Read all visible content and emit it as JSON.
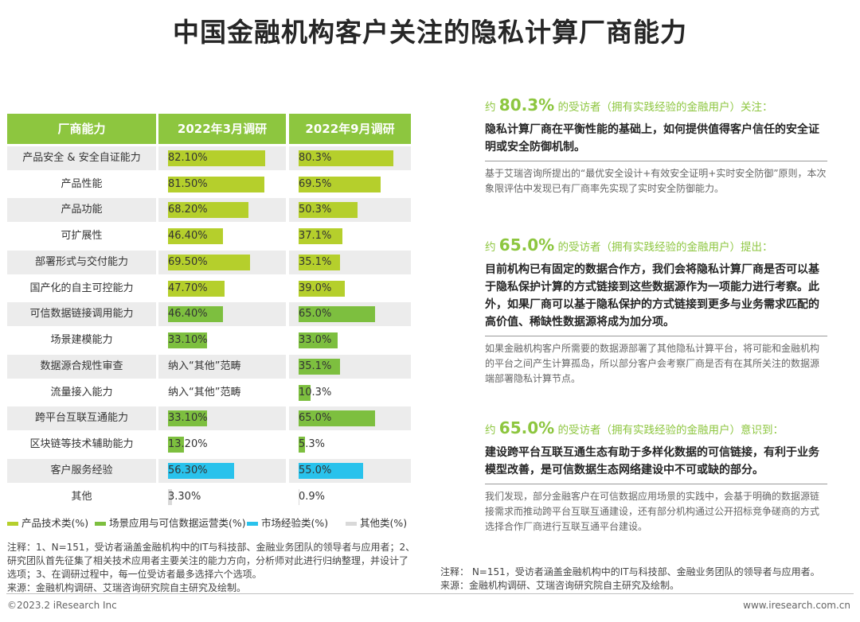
{
  "title": "中国金融机构客户关注的隐私计算厂商能力",
  "colors": {
    "product": "#b5cf2c",
    "scene": "#7dbf3f",
    "market": "#29c2ec",
    "other": "#d9d9d9",
    "header": "#8dc63f"
  },
  "chart_data": {
    "type": "table",
    "headers": [
      "厂商能力",
      "2022年3月调研",
      "2022年9月调研"
    ],
    "rows": [
      {
        "label": "产品安全 & 安全自证能力",
        "mar": 82.1,
        "mar_text": "82.10%",
        "sep": 80.3,
        "sep_text": "80.3%",
        "cat": "product"
      },
      {
        "label": "产品性能",
        "mar": 81.5,
        "mar_text": "81.50%",
        "sep": 69.5,
        "sep_text": "69.5%",
        "cat": "product"
      },
      {
        "label": "产品功能",
        "mar": 68.2,
        "mar_text": "68.20%",
        "sep": 50.3,
        "sep_text": "50.3%",
        "cat": "product"
      },
      {
        "label": "可扩展性",
        "mar": 46.4,
        "mar_text": "46.40%",
        "sep": 37.1,
        "sep_text": "37.1%",
        "cat": "product"
      },
      {
        "label": "部署形式与交付能力",
        "mar": 69.5,
        "mar_text": "69.50%",
        "sep": 35.1,
        "sep_text": "35.1%",
        "cat": "product"
      },
      {
        "label": "国产化的自主可控能力",
        "mar": 47.7,
        "mar_text": "47.70%",
        "sep": 39.0,
        "sep_text": "39.0%",
        "cat": "product"
      },
      {
        "label": "可信数据链接调用能力",
        "mar": 46.4,
        "mar_text": "46.40%",
        "sep": 65.0,
        "sep_text": "65.0%",
        "cat": "scene"
      },
      {
        "label": "场景建模能力",
        "mar": 33.1,
        "mar_text": "33.10%",
        "sep": 33.0,
        "sep_text": "33.0%",
        "cat": "scene"
      },
      {
        "label": "数据源合规性审查",
        "mar": null,
        "mar_text": "纳入“其他”范畴",
        "sep": 35.1,
        "sep_text": "35.1%",
        "cat": "scene"
      },
      {
        "label": "流量接入能力",
        "mar": null,
        "mar_text": "纳入“其他”范畴",
        "sep": 10.3,
        "sep_text": "10.3%",
        "cat": "scene"
      },
      {
        "label": "跨平台互联互通能力",
        "mar": 33.1,
        "mar_text": "33.10%",
        "sep": 65.0,
        "sep_text": "65.0%",
        "cat": "scene"
      },
      {
        "label": "区块链等技术辅助能力",
        "mar": 13.2,
        "mar_text": "13.20%",
        "sep": 5.3,
        "sep_text": "5.3%",
        "cat": "scene"
      },
      {
        "label": "客户服务经验",
        "mar": 56.3,
        "mar_text": "56.30%",
        "sep": 55.0,
        "sep_text": "55.0%",
        "cat": "market"
      },
      {
        "label": "其他",
        "mar": 3.3,
        "mar_text": "3.30%",
        "sep": 0.9,
        "sep_text": "0.9%",
        "cat": "other"
      }
    ],
    "legend": [
      {
        "key": "product",
        "label": "产品技术类(%)"
      },
      {
        "key": "scene",
        "label": "场景应用与可信数据运营类(%)"
      },
      {
        "key": "market",
        "label": "市场经验类(%)"
      },
      {
        "key": "other",
        "label": "其他类(%)"
      }
    ]
  },
  "notes_left": "注释：1、N=151，受访者涵盖金融机构中的IT与科技部、金融业务团队的领导者与应用者；2、研究团队首先征集了相关技术应用者主要关注的能力方向，分析师对此进行归纳整理，并设计了选项；3、在调研过程中，每一位受访者最多选择六个选项。",
  "source_left": "来源：金融机构调研、艾瑞咨询研究院自主研究及绘制。",
  "blocks": [
    {
      "pre": "约 ",
      "pct": "80.3%",
      "post": " 的受访者（拥有实践经验的金融用户）关注：",
      "bold": "隐私计算厂商在平衡性能的基础上，如何提供值得客户信任的安全证明或安全防御机制。",
      "desc": "基于艾瑞咨询所提出的“最优安全设计+有效安全证明+实时安全防御”原则，本次象限评估中发现已有厂商率先实现了实时安全防御能力。"
    },
    {
      "pre": "约 ",
      "pct": "65.0%",
      "post": " 的受访者（拥有实践经验的金融用户）提出：",
      "bold": "目前机构已有固定的数据合作方，我们会将隐私计算厂商是否可以基于隐私保护计算的方式链接到这些数据源作为一项能力进行考察。此外，如果厂商可以基于隐私保护的方式链接到更多与业务需求匹配的高价值、稀缺性数据源将成为加分项。",
      "desc": "如果金融机构客户所需要的数据源部署了其他隐私计算平台，将可能和金融机构的平台之间产生计算孤岛，所以部分客户会考察厂商是否有在其所关注的数据源端部署隐私计算节点。"
    },
    {
      "pre": "约 ",
      "pct": "65.0%",
      "post": " 的受访者（拥有实践经验的金融用户）意识到：",
      "bold": "建设跨平台互联互通生态有助于多样化数据的可信链接，有利于业务模型改善，是可信数据生态网络建设中不可或缺的部分。",
      "desc": "我们发现，部分金融客户在可信数据应用场景的实践中，会基于明确的数据源链接需求而推动跨平台互联互通建设，还有部分机构通过公开招标竞争磋商的方式选择合作厂商进行互联互通平台建设。"
    }
  ],
  "notes_right": "注释：  N=151，受访者涵盖金融机构中的IT与科技部、金融业务团队的领导者与应用者。",
  "source_right": "来源：金融机构调研、艾瑞咨询研究院自主研究及绘制。",
  "footer_left": "©2023.2 iResearch Inc",
  "footer_right": "www.iresearch.com.cn"
}
